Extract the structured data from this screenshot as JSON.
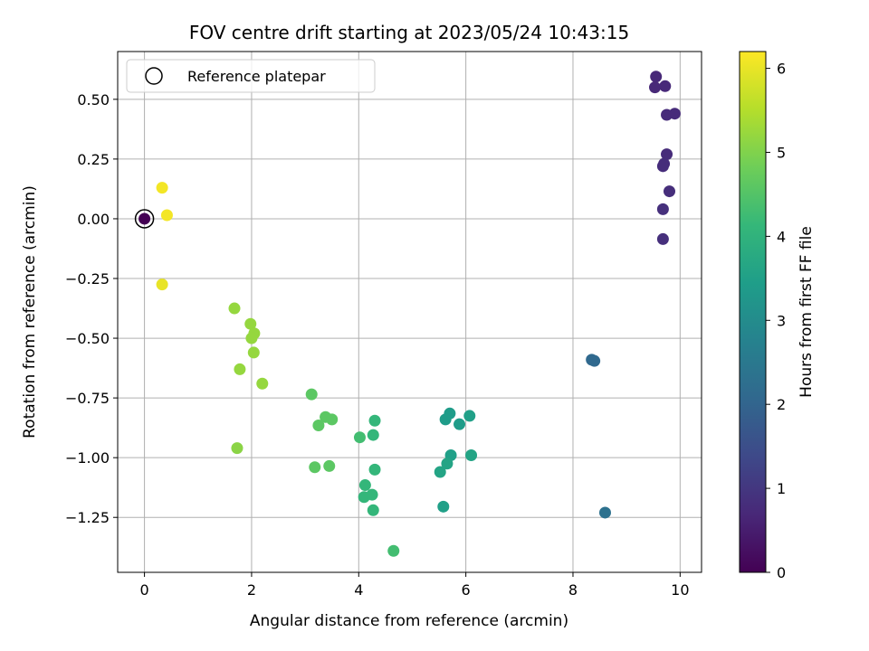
{
  "chart_data": {
    "type": "scatter",
    "title": "FOV centre drift starting at 2023/05/24 10:43:15",
    "xlabel": "Angular distance from reference (arcmin)",
    "ylabel": "Rotation from reference (arcmin)",
    "xlim": [
      -0.5,
      10.4
    ],
    "ylim": [
      -1.48,
      0.7
    ],
    "xticks": [
      0,
      2,
      4,
      6,
      8,
      10
    ],
    "xtick_labels": [
      "0",
      "2",
      "4",
      "6",
      "8",
      "10"
    ],
    "yticks": [
      0.5,
      0.25,
      0.0,
      -0.25,
      -0.5,
      -0.75,
      -1.0,
      -1.25
    ],
    "ytick_labels": [
      "0.50",
      "0.25",
      "0.00",
      "−0.25",
      "−0.50",
      "−0.75",
      "−1.00",
      "−1.25"
    ],
    "grid": true,
    "colormap": "viridis",
    "colorbar": {
      "label": "Hours from first FF file",
      "min": 0,
      "max": 6.2,
      "ticks": [
        0,
        1,
        2,
        3,
        4,
        5,
        6
      ],
      "tick_labels": [
        "0",
        "1",
        "2",
        "3",
        "4",
        "5",
        "6"
      ]
    },
    "legend": {
      "position": "upper-left",
      "entries": [
        "Reference platepar"
      ]
    },
    "reference_point": {
      "x": 0,
      "y": 0
    },
    "points": [
      {
        "x": 0.0,
        "y": 0.0,
        "c": 0.0
      },
      {
        "x": 9.55,
        "y": 0.595,
        "c": 0.7
      },
      {
        "x": 9.53,
        "y": 0.55,
        "c": 0.7
      },
      {
        "x": 9.72,
        "y": 0.555,
        "c": 0.72
      },
      {
        "x": 9.75,
        "y": 0.435,
        "c": 0.75
      },
      {
        "x": 9.9,
        "y": 0.44,
        "c": 0.75
      },
      {
        "x": 9.75,
        "y": 0.27,
        "c": 0.78
      },
      {
        "x": 9.7,
        "y": 0.23,
        "c": 0.8
      },
      {
        "x": 9.68,
        "y": 0.22,
        "c": 0.8
      },
      {
        "x": 9.8,
        "y": 0.115,
        "c": 0.82
      },
      {
        "x": 9.68,
        "y": 0.04,
        "c": 0.85
      },
      {
        "x": 9.68,
        "y": -0.085,
        "c": 0.85
      },
      {
        "x": 8.35,
        "y": -0.59,
        "c": 2.1
      },
      {
        "x": 8.4,
        "y": -0.595,
        "c": 2.1
      },
      {
        "x": 8.6,
        "y": -1.23,
        "c": 2.3
      },
      {
        "x": 5.7,
        "y": -0.815,
        "c": 3.4
      },
      {
        "x": 5.62,
        "y": -0.84,
        "c": 3.4
      },
      {
        "x": 5.88,
        "y": -0.86,
        "c": 3.4
      },
      {
        "x": 6.07,
        "y": -0.825,
        "c": 3.5
      },
      {
        "x": 5.72,
        "y": -0.99,
        "c": 3.5
      },
      {
        "x": 6.1,
        "y": -0.99,
        "c": 3.6
      },
      {
        "x": 5.65,
        "y": -1.025,
        "c": 3.6
      },
      {
        "x": 5.52,
        "y": -1.06,
        "c": 3.6
      },
      {
        "x": 5.58,
        "y": -1.205,
        "c": 3.5
      },
      {
        "x": 4.3,
        "y": -0.845,
        "c": 4.1
      },
      {
        "x": 4.27,
        "y": -0.905,
        "c": 4.1
      },
      {
        "x": 4.02,
        "y": -0.915,
        "c": 4.3
      },
      {
        "x": 4.3,
        "y": -1.05,
        "c": 4.1
      },
      {
        "x": 4.12,
        "y": -1.115,
        "c": 4.1
      },
      {
        "x": 4.1,
        "y": -1.165,
        "c": 4.1
      },
      {
        "x": 4.25,
        "y": -1.155,
        "c": 4.1
      },
      {
        "x": 4.27,
        "y": -1.22,
        "c": 4.1
      },
      {
        "x": 4.65,
        "y": -1.39,
        "c": 4.3
      },
      {
        "x": 3.12,
        "y": -0.735,
        "c": 4.6
      },
      {
        "x": 3.38,
        "y": -0.83,
        "c": 4.6
      },
      {
        "x": 3.5,
        "y": -0.84,
        "c": 4.6
      },
      {
        "x": 3.25,
        "y": -0.865,
        "c": 4.6
      },
      {
        "x": 3.18,
        "y": -1.04,
        "c": 4.6
      },
      {
        "x": 3.45,
        "y": -1.035,
        "c": 4.6
      },
      {
        "x": 1.68,
        "y": -0.375,
        "c": 5.2
      },
      {
        "x": 1.98,
        "y": -0.44,
        "c": 5.2
      },
      {
        "x": 2.05,
        "y": -0.48,
        "c": 5.2
      },
      {
        "x": 2.0,
        "y": -0.5,
        "c": 5.2
      },
      {
        "x": 2.04,
        "y": -0.56,
        "c": 5.2
      },
      {
        "x": 1.78,
        "y": -0.63,
        "c": 5.2
      },
      {
        "x": 2.2,
        "y": -0.69,
        "c": 5.2
      },
      {
        "x": 1.73,
        "y": -0.96,
        "c": 5.1
      },
      {
        "x": 0.33,
        "y": 0.13,
        "c": 6.1
      },
      {
        "x": 0.42,
        "y": 0.015,
        "c": 6.1
      },
      {
        "x": 0.33,
        "y": -0.275,
        "c": 6.0
      }
    ]
  }
}
